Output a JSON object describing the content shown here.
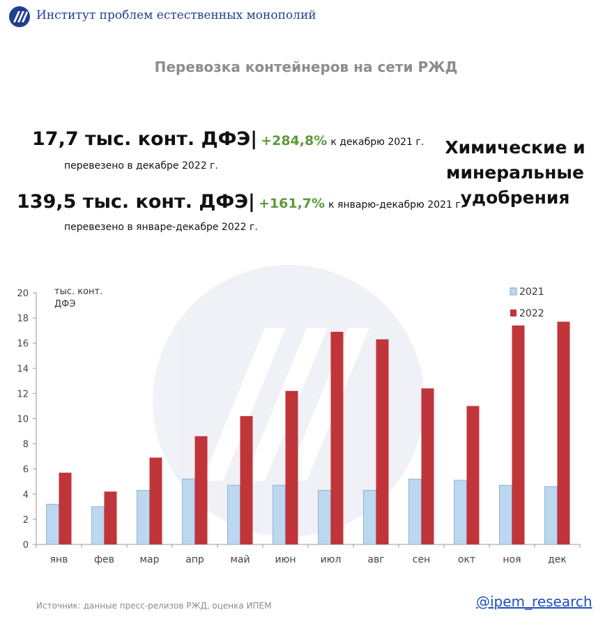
{
  "header": {
    "org_name": "Институт проблем естественных монополий",
    "logo_icon": "ipem-logo-icon"
  },
  "title": "Перевозка контейнеров на сети РЖД",
  "stats": {
    "dec_value": "17,7 тыс. конт. ДФЭ",
    "dec_pct": "+284,8%",
    "dec_cmp": "к декабрю 2021 г.",
    "dec_caption": "перевезено в декабре 2022 г.",
    "year_value": "139,5 тыс. конт. ДФЭ",
    "year_pct": "+161,7%",
    "year_cmp": "к январю-декабрю 2021 г.",
    "year_caption": "перевезено в январе-декабре 2022 г."
  },
  "category": {
    "line1": "Химические и",
    "line2": "минеральные",
    "line3": "удобрения"
  },
  "footer": {
    "source": "Источник: данные пресс-релизов РЖД, оценка ИПЕМ",
    "handle": "@ipem_research"
  },
  "colors": {
    "series_2021": "#bcd7f0",
    "series_2021_stroke": "#7fa6cc",
    "series_2022": "#c0353a",
    "accent_green": "#5b9a3a",
    "header_blue": "#1f3f8f"
  },
  "chart_data": {
    "type": "bar",
    "ylabel": "тыс. конт. ДФЭ",
    "ylim": [
      0,
      20
    ],
    "yticks": [
      0,
      2,
      4,
      6,
      8,
      10,
      12,
      14,
      16,
      18,
      20
    ],
    "grid": false,
    "legend_position": "top-right",
    "categories": [
      "янв",
      "фев",
      "мар",
      "апр",
      "май",
      "июн",
      "июл",
      "авг",
      "сен",
      "окт",
      "ноя",
      "дек"
    ],
    "series": [
      {
        "name": "2021",
        "values": [
          3.2,
          3.0,
          4.3,
          5.2,
          4.7,
          4.7,
          4.3,
          4.3,
          5.2,
          5.1,
          4.7,
          4.6
        ]
      },
      {
        "name": "2022",
        "values": [
          5.7,
          4.2,
          6.9,
          8.6,
          10.2,
          12.2,
          16.9,
          16.3,
          12.4,
          11.0,
          17.4,
          17.7
        ]
      }
    ]
  }
}
